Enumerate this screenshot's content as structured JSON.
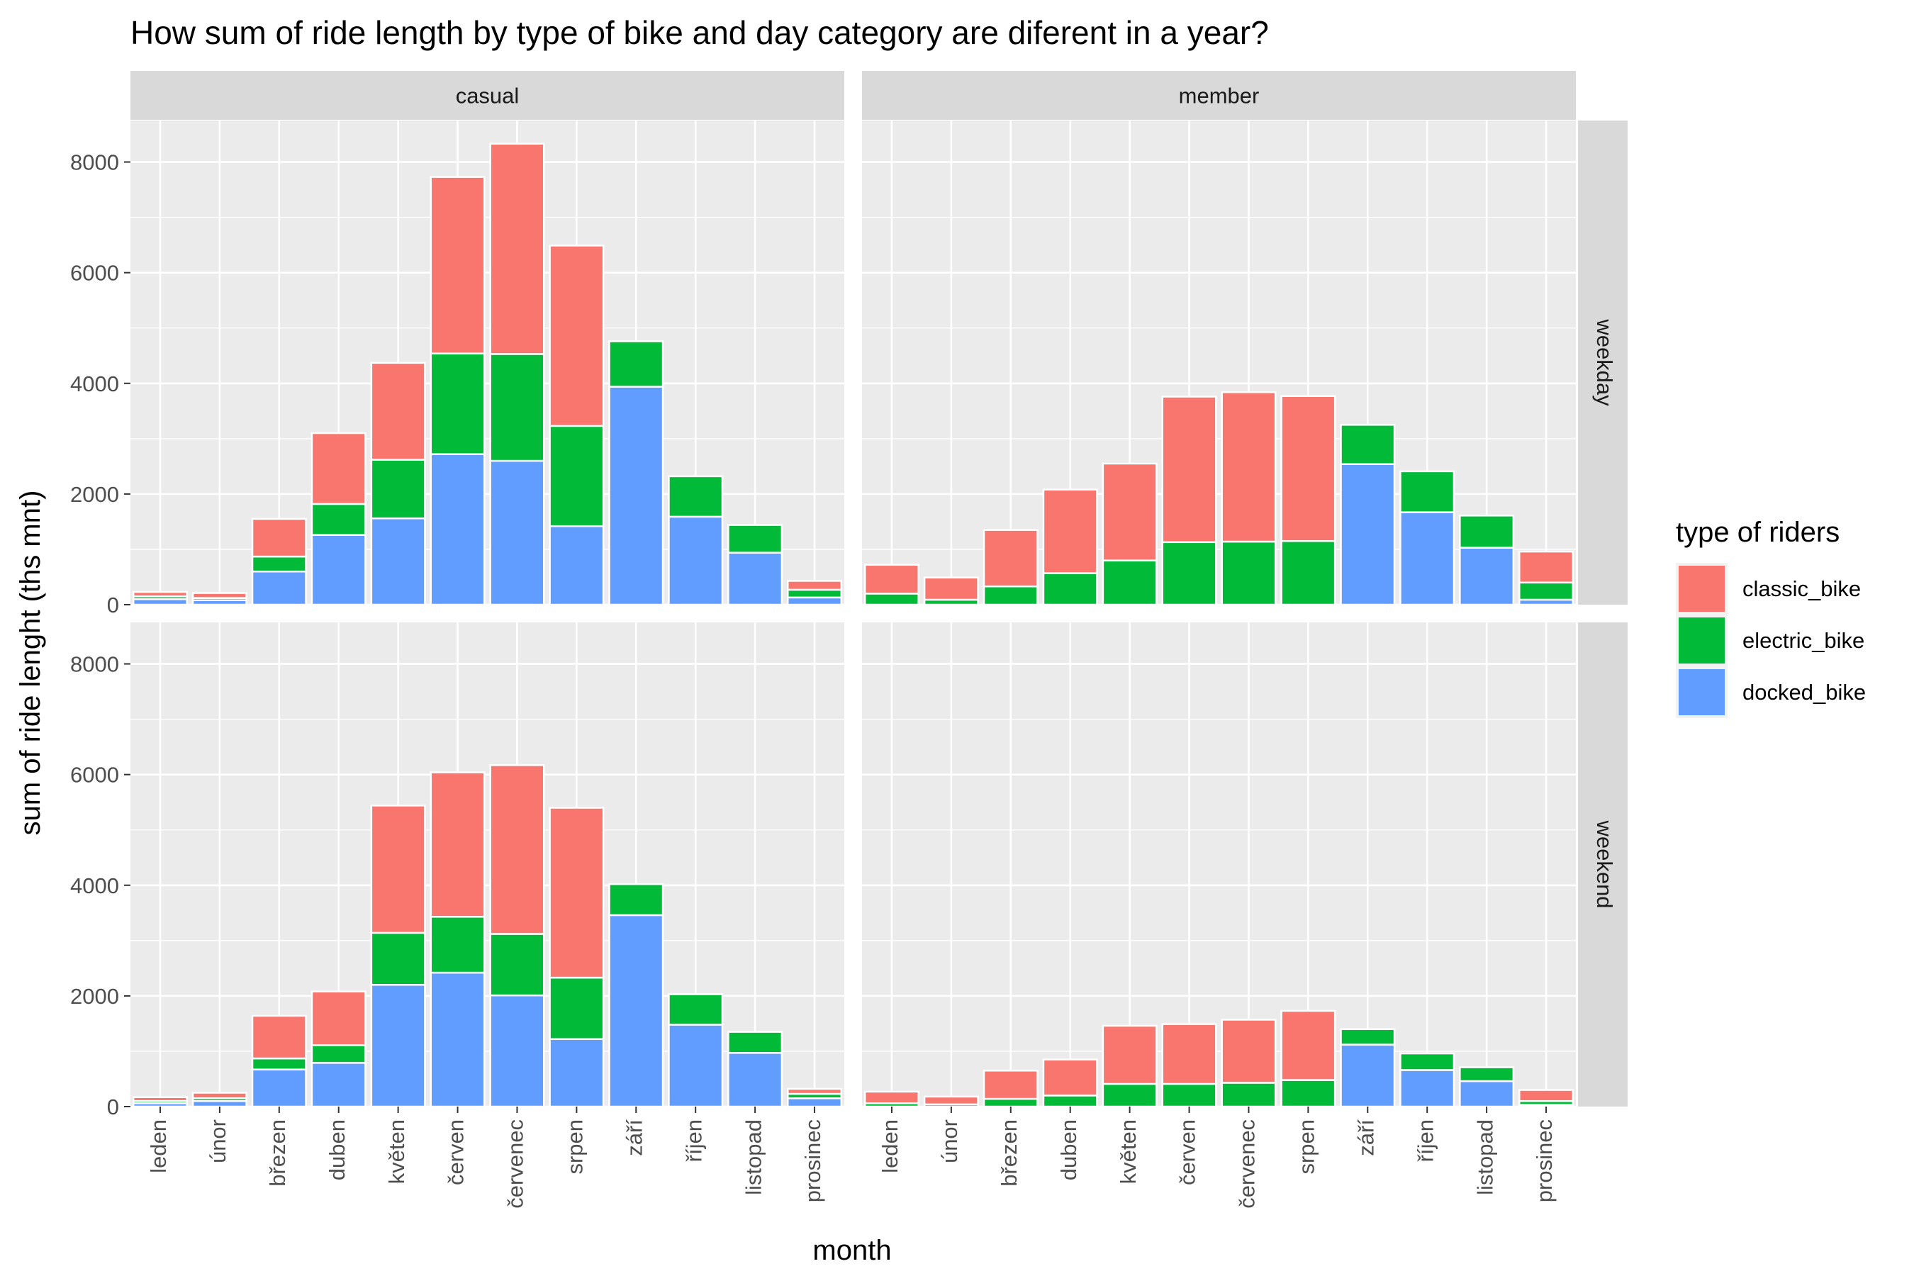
{
  "chart_data": {
    "type": "bar",
    "stacked": true,
    "title": "How sum of ride length by type of bike and day category are diferent in a year?",
    "xlabel": "month",
    "ylabel": "sum of ride lenght (ths mnt)",
    "ylim": [
      0,
      8750
    ],
    "y_ticks": [
      0,
      2000,
      4000,
      6000,
      8000
    ],
    "grid": true,
    "categories": [
      "leden",
      "únor",
      "březen",
      "duben",
      "květen",
      "červen",
      "červenec",
      "srpen",
      "září",
      "říjen",
      "listopad",
      "prosinec"
    ],
    "facet_columns": [
      "casual",
      "member"
    ],
    "facet_rows": [
      "weekday",
      "weekend"
    ],
    "legend": {
      "title": "type of riders",
      "position": "right",
      "entries": [
        {
          "name": "classic_bike",
          "color": "#F8766D"
        },
        {
          "name": "electric_bike",
          "color": "#00BA38"
        },
        {
          "name": "docked_bike",
          "color": "#619CFF"
        }
      ]
    },
    "stack_order": [
      "docked_bike",
      "electric_bike",
      "classic_bike"
    ],
    "colors": {
      "classic_bike": "#F8766D",
      "electric_bike": "#00BA38",
      "docked_bike": "#619CFF"
    },
    "panels": [
      {
        "column": "casual",
        "row": "weekday",
        "series": [
          {
            "name": "docked_bike",
            "values": [
              100,
              80,
              600,
              1260,
              1560,
              2720,
              2600,
              1420,
              3940,
              1590,
              940,
              130
            ]
          },
          {
            "name": "electric_bike",
            "values": [
              50,
              40,
              270,
              560,
              1060,
              1820,
              1930,
              1810,
              820,
              730,
              500,
              140
            ]
          },
          {
            "name": "classic_bike",
            "values": [
              80,
              90,
              680,
              1280,
              1750,
              3190,
              3800,
              3260,
              0,
              0,
              0,
              160
            ]
          }
        ]
      },
      {
        "column": "member",
        "row": "weekday",
        "series": [
          {
            "name": "docked_bike",
            "values": [
              0,
              0,
              0,
              0,
              0,
              0,
              0,
              0,
              2540,
              1670,
              1030,
              90
            ]
          },
          {
            "name": "electric_bike",
            "values": [
              200,
              90,
              330,
              570,
              800,
              1130,
              1140,
              1150,
              710,
              740,
              580,
              310
            ]
          },
          {
            "name": "classic_bike",
            "values": [
              520,
              400,
              1020,
              1510,
              1750,
              2630,
              2700,
              2620,
              0,
              0,
              0,
              560
            ]
          }
        ]
      },
      {
        "column": "casual",
        "row": "weekend",
        "series": [
          {
            "name": "docked_bike",
            "values": [
              60,
              100,
              670,
              790,
              2200,
              2420,
              2010,
              1220,
              3460,
              1480,
              970,
              150
            ]
          },
          {
            "name": "electric_bike",
            "values": [
              40,
              50,
              200,
              320,
              940,
              1010,
              1110,
              1110,
              560,
              550,
              380,
              80
            ]
          },
          {
            "name": "classic_bike",
            "values": [
              70,
              100,
              770,
              970,
              2300,
              2610,
              3050,
              3070,
              0,
              0,
              0,
              90
            ]
          }
        ]
      },
      {
        "column": "member",
        "row": "weekend",
        "series": [
          {
            "name": "docked_bike",
            "values": [
              0,
              0,
              0,
              0,
              0,
              0,
              0,
              0,
              1120,
              660,
              460,
              30
            ]
          },
          {
            "name": "electric_bike",
            "values": [
              60,
              40,
              140,
              200,
              410,
              410,
              430,
              480,
              280,
              300,
              250,
              70
            ]
          },
          {
            "name": "classic_bike",
            "values": [
              210,
              140,
              510,
              650,
              1050,
              1080,
              1140,
              1250,
              0,
              0,
              0,
              200
            ]
          }
        ]
      }
    ]
  }
}
